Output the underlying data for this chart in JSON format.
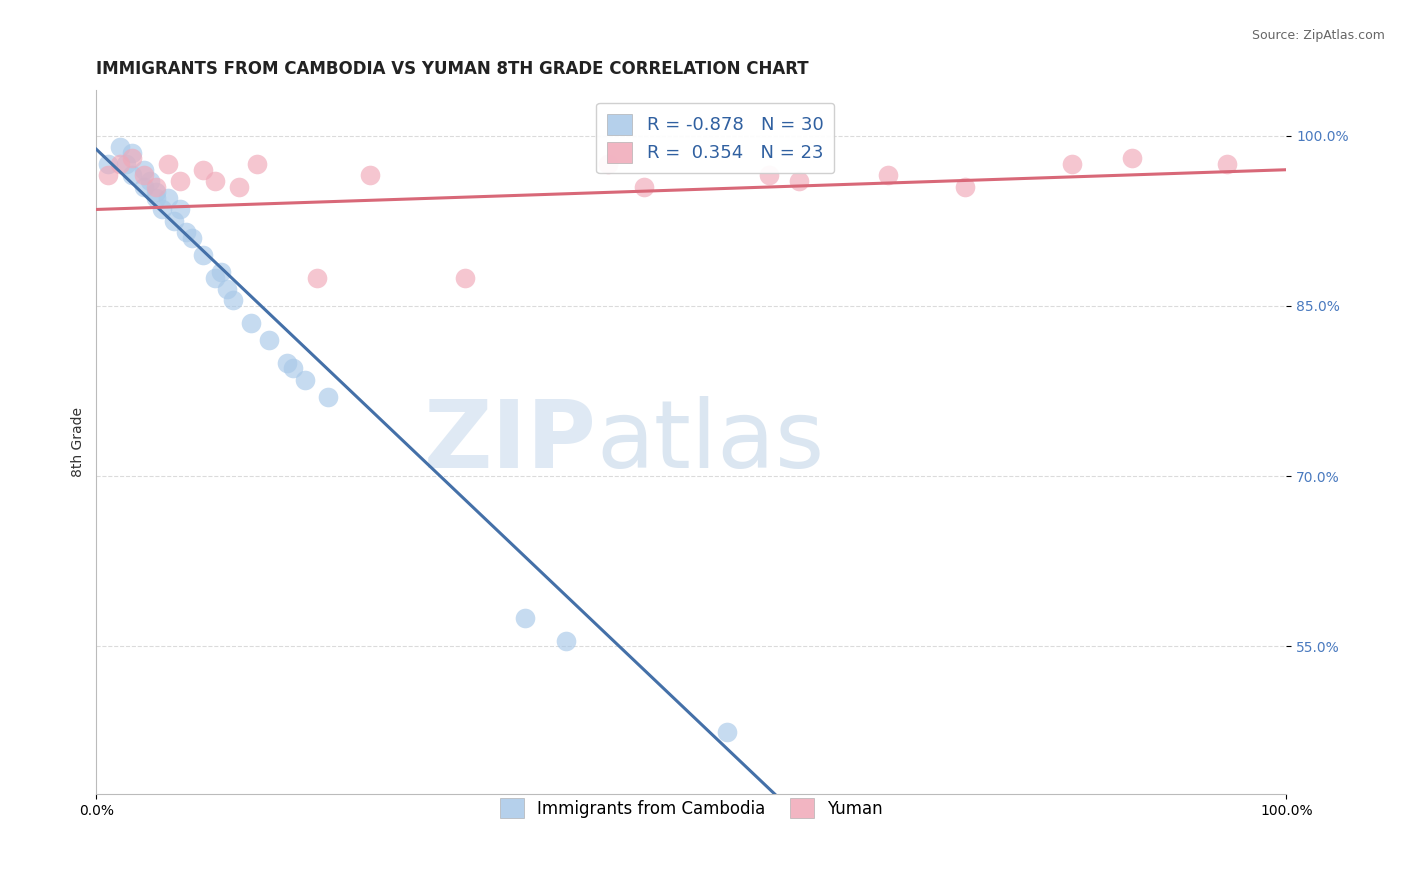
{
  "title": "IMMIGRANTS FROM CAMBODIA VS YUMAN 8TH GRADE CORRELATION CHART",
  "source": "Source: ZipAtlas.com",
  "ylabel": "8th Grade",
  "xlim": [
    0.0,
    1.0
  ],
  "ylim": [
    0.42,
    1.04
  ],
  "yticks": [
    0.55,
    0.7,
    0.85,
    1.0
  ],
  "ytick_labels": [
    "55.0%",
    "70.0%",
    "85.0%",
    "100.0%"
  ],
  "xtick_labels": [
    "0.0%",
    "100.0%"
  ],
  "xticks": [
    0.0,
    1.0
  ],
  "blue_label": "Immigrants from Cambodia",
  "pink_label": "Yuman",
  "blue_R": "-0.878",
  "blue_N": "30",
  "pink_R": "0.354",
  "pink_N": "23",
  "blue_color": "#a8c8e8",
  "pink_color": "#f0a8b8",
  "blue_line_color": "#4470a8",
  "pink_line_color": "#d86878",
  "watermark_zip": "ZIP",
  "watermark_atlas": "atlas",
  "blue_x": [
    0.01,
    0.02,
    0.025,
    0.03,
    0.03,
    0.04,
    0.04,
    0.045,
    0.05,
    0.05,
    0.055,
    0.06,
    0.065,
    0.07,
    0.075,
    0.08,
    0.09,
    0.1,
    0.105,
    0.11,
    0.115,
    0.13,
    0.145,
    0.16,
    0.165,
    0.175,
    0.195,
    0.36,
    0.395,
    0.53
  ],
  "blue_y": [
    0.975,
    0.99,
    0.975,
    0.985,
    0.965,
    0.97,
    0.955,
    0.96,
    0.945,
    0.95,
    0.935,
    0.945,
    0.925,
    0.935,
    0.915,
    0.91,
    0.895,
    0.875,
    0.88,
    0.865,
    0.855,
    0.835,
    0.82,
    0.8,
    0.795,
    0.785,
    0.77,
    0.575,
    0.555,
    0.475
  ],
  "pink_x": [
    0.01,
    0.02,
    0.03,
    0.04,
    0.05,
    0.06,
    0.07,
    0.09,
    0.1,
    0.12,
    0.135,
    0.185,
    0.23,
    0.31,
    0.43,
    0.46,
    0.565,
    0.59,
    0.665,
    0.73,
    0.82,
    0.87,
    0.95
  ],
  "pink_y": [
    0.965,
    0.975,
    0.98,
    0.965,
    0.955,
    0.975,
    0.96,
    0.97,
    0.96,
    0.955,
    0.975,
    0.875,
    0.965,
    0.875,
    0.975,
    0.955,
    0.965,
    0.96,
    0.965,
    0.955,
    0.975,
    0.98,
    0.975
  ],
  "blue_line_x": [
    0.0,
    0.57
  ],
  "blue_line_y": [
    0.988,
    0.42
  ],
  "pink_line_x": [
    0.0,
    1.0
  ],
  "pink_line_y": [
    0.935,
    0.97
  ],
  "grid_color": "#d8d8d8",
  "background_color": "#ffffff",
  "title_fontsize": 12,
  "axis_fontsize": 10,
  "tick_fontsize": 10,
  "legend_fontsize": 13
}
